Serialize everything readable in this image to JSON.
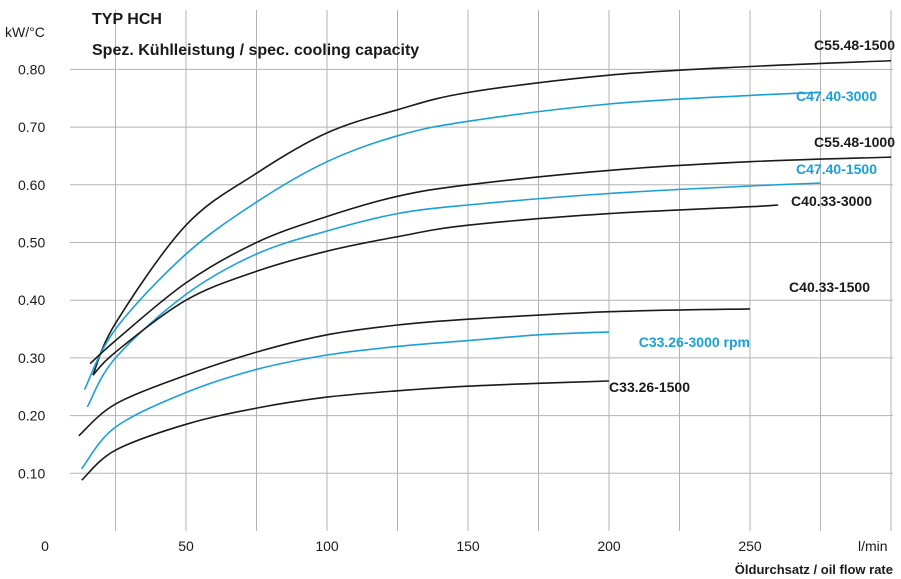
{
  "chart_data": {
    "type": "line",
    "title": "TYP HCH",
    "subtitle": "Spez. Kühlleistung / spec. cooling capacity",
    "ylabel": "kW/°C",
    "xlabel": "Öldurchsatz / oil flow rate",
    "xunit": "l/min",
    "xlim": [
      0,
      300
    ],
    "ylim": [
      0,
      0.9
    ],
    "x_ticks": [
      0,
      50,
      100,
      150,
      200,
      250
    ],
    "y_ticks": [
      "0.10",
      "0.20",
      "0.30",
      "0.40",
      "0.50",
      "0.60",
      "0.70",
      "0.80"
    ],
    "y_tick_values": [
      0.1,
      0.2,
      0.3,
      0.4,
      0.5,
      0.6,
      0.7,
      0.8
    ],
    "grid": true,
    "colors": {
      "black": "#1a1a1a",
      "blue": "#1aa0d8",
      "grid": "#b3b3b3"
    },
    "series": [
      {
        "name": "C55.48-1500",
        "color": "black",
        "x": [
          17,
          25,
          50,
          75,
          100,
          125,
          150,
          200,
          250,
          300
        ],
        "y": [
          0.27,
          0.36,
          0.53,
          0.62,
          0.69,
          0.73,
          0.76,
          0.79,
          0.805,
          0.815
        ]
      },
      {
        "name": "C47.40-3000",
        "color": "blue",
        "x": [
          14,
          25,
          50,
          75,
          100,
          125,
          150,
          200,
          250,
          275
        ],
        "y": [
          0.245,
          0.35,
          0.48,
          0.57,
          0.64,
          0.685,
          0.71,
          0.74,
          0.755,
          0.76
        ]
      },
      {
        "name": "C55.48-1000",
        "color": "black",
        "x": [
          16,
          25,
          50,
          75,
          100,
          125,
          150,
          200,
          250,
          300
        ],
        "y": [
          0.29,
          0.33,
          0.43,
          0.5,
          0.545,
          0.58,
          0.6,
          0.625,
          0.64,
          0.648
        ]
      },
      {
        "name": "C47.40-1500",
        "color": "blue",
        "x": [
          15,
          25,
          50,
          75,
          100,
          125,
          150,
          200,
          250,
          275
        ],
        "y": [
          0.215,
          0.3,
          0.41,
          0.48,
          0.52,
          0.55,
          0.565,
          0.585,
          0.598,
          0.603
        ]
      },
      {
        "name": "C40.33-3000",
        "color": "black",
        "x": [
          17,
          25,
          50,
          75,
          100,
          125,
          150,
          200,
          250,
          260
        ],
        "y": [
          0.27,
          0.31,
          0.4,
          0.45,
          0.485,
          0.51,
          0.53,
          0.55,
          0.562,
          0.565
        ]
      },
      {
        "name": "C40.33-1500",
        "color": "black",
        "x": [
          12,
          25,
          50,
          75,
          100,
          125,
          150,
          200,
          250
        ],
        "y": [
          0.165,
          0.22,
          0.27,
          0.31,
          0.34,
          0.357,
          0.367,
          0.38,
          0.385
        ]
      },
      {
        "name": "C33.26-3000 rpm",
        "color": "blue",
        "x": [
          13,
          25,
          50,
          75,
          100,
          125,
          150,
          175,
          200
        ],
        "y": [
          0.108,
          0.18,
          0.24,
          0.28,
          0.305,
          0.32,
          0.33,
          0.34,
          0.345
        ]
      },
      {
        "name": "C33.26-1500",
        "color": "black",
        "x": [
          13,
          25,
          50,
          75,
          100,
          125,
          150,
          175,
          200
        ],
        "y": [
          0.088,
          0.14,
          0.185,
          0.213,
          0.232,
          0.243,
          0.251,
          0.256,
          0.26
        ]
      }
    ]
  }
}
